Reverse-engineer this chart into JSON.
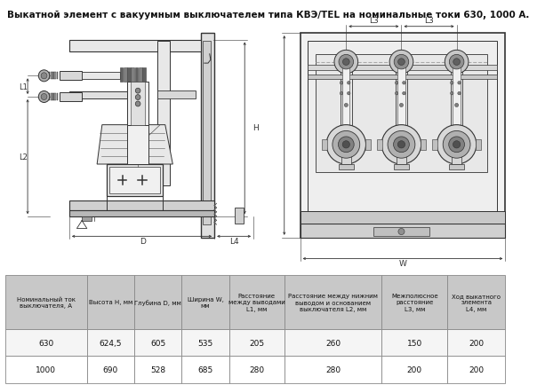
{
  "title": "Выкатной элемент с вакуумным выключателем типа КВЭ/TEL на номинальные токи 630, 1000 А.",
  "title_fontsize": 7.5,
  "table_headers": [
    "Номинальный ток\nвыключателя, А",
    "Высота H, мм",
    "Глубина D, мм",
    "Ширина W,\nмм",
    "Расстояние\nмежду выводами\nL1, мм",
    "Расстояние между нижним\nвыводом и основанием\nвыключателя L2, мм",
    "Межполюсное\nрасстояние\nL3, мм",
    "Ход выкатного\nэлемента\nL4, мм"
  ],
  "table_rows": [
    [
      "630",
      "624,5",
      "605",
      "535",
      "205",
      "260",
      "150",
      "200"
    ],
    [
      "1000",
      "690",
      "528",
      "685",
      "280",
      "280",
      "200",
      "200"
    ]
  ],
  "bg_color": "#ffffff",
  "table_header_bg": "#c8c8c8",
  "table_border_color": "#888888",
  "fig_width": 6.04,
  "fig_height": 4.35,
  "dpi": 100
}
